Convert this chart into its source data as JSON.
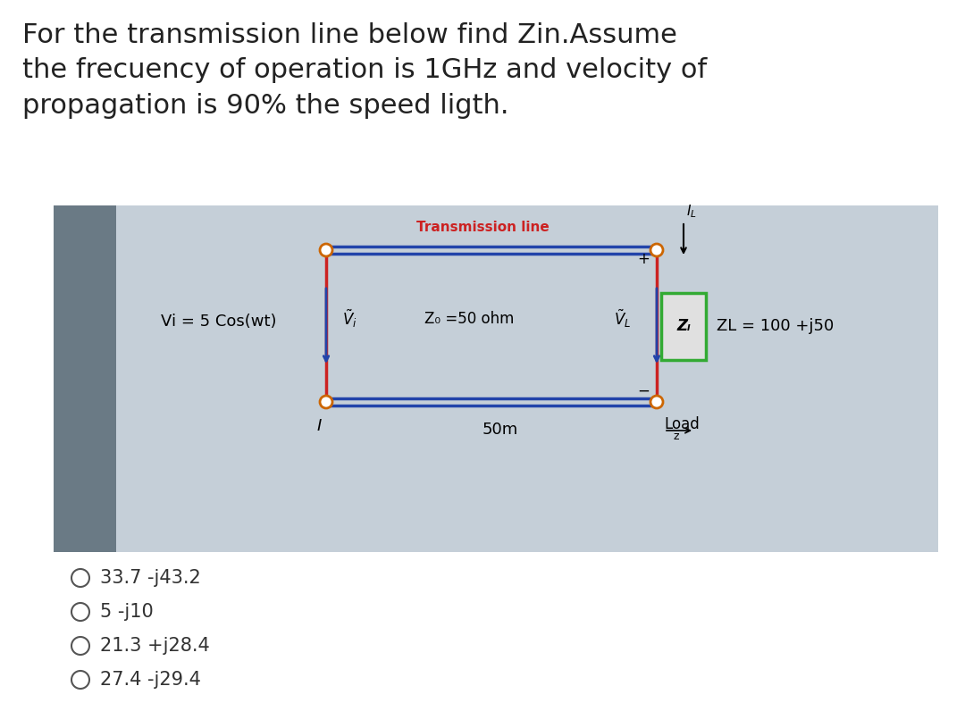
{
  "title_text": "For the transmission line below find Zin.Assume\nthe frecuency of operation is 1GHz and velocity of\npropagation is 90% the speed ligth.",
  "title_fontsize": 22,
  "title_color": "#222222",
  "transmission_line_label": "Transmission line",
  "transmission_line_color": "#cc2222",
  "zo_label": "Z₀ =50 ohm",
  "zL_box_label": "Zₗ",
  "zL_value_label": "ZL = 100 +j50",
  "fifty_m_label": "50m",
  "load_label": "Load",
  "vi_label": "Vi = 5 Cos(wt)",
  "choices": [
    "33.7 -j43.2",
    "5 -j10",
    "21.3 +j28.4",
    "27.4 -j29.4"
  ],
  "line_color_blue": "#2244aa",
  "line_color_red": "#cc2222",
  "node_color": "#cc6600",
  "zL_box_color": "#33aa33",
  "photo_bg": "#b0bcca",
  "left_strip_color": "#6a7a85",
  "inner_bg": "#c5cfd8"
}
